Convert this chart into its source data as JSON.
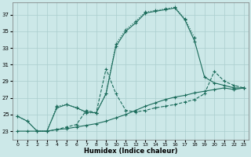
{
  "xlabel": "Humidex (Indice chaleur)",
  "background_color": "#cce8e8",
  "grid_color": "#aacece",
  "line_color": "#1a6b5a",
  "xlim": [
    -0.5,
    23.5
  ],
  "ylim": [
    22.0,
    38.5
  ],
  "yticks": [
    23,
    25,
    27,
    29,
    31,
    33,
    35,
    37
  ],
  "xticks": [
    0,
    1,
    2,
    3,
    4,
    5,
    6,
    7,
    8,
    9,
    10,
    11,
    12,
    13,
    14,
    15,
    16,
    17,
    18,
    19,
    20,
    21,
    22,
    23
  ],
  "line1_x": [
    0,
    1,
    2,
    3,
    4,
    5,
    6,
    7,
    8,
    9,
    10,
    11,
    12,
    13,
    14,
    15,
    16,
    17,
    18
  ],
  "line1_y": [
    24.8,
    24.2,
    23.0,
    23.0,
    26.0,
    26.2,
    25.8,
    25.2,
    25.2,
    27.5,
    33.5,
    35.2,
    36.2,
    37.3,
    37.5,
    37.7,
    37.9,
    36.5,
    34.2
  ],
  "line2_x": [
    0,
    1,
    2,
    3,
    4,
    5,
    6,
    7,
    8,
    9,
    10,
    11,
    12,
    13,
    14,
    15,
    16,
    17,
    18,
    19,
    20,
    21,
    22,
    23
  ],
  "line2_y": [
    23.0,
    23.0,
    23.0,
    23.0,
    23.2,
    23.3,
    23.5,
    23.7,
    23.9,
    24.2,
    24.6,
    25.0,
    25.5,
    26.0,
    26.4,
    26.8,
    27.1,
    27.3,
    27.6,
    27.8,
    28.0,
    28.2,
    28.0,
    28.2
  ],
  "line3_x": [
    3,
    4,
    5,
    6,
    7,
    8,
    9,
    10,
    11,
    12,
    13,
    14,
    15,
    16,
    17,
    18,
    19,
    20,
    21,
    22,
    23
  ],
  "line3_y": [
    23.0,
    23.2,
    23.5,
    23.8,
    25.5,
    25.2,
    30.5,
    27.5,
    25.5,
    25.3,
    25.5,
    25.8,
    26.0,
    26.2,
    26.5,
    26.8,
    27.5,
    30.2,
    29.0,
    28.5,
    28.2
  ],
  "line4_x": [
    0,
    1,
    2,
    3,
    4,
    5,
    6,
    7,
    8,
    9,
    10,
    11,
    12,
    13,
    14,
    15,
    16,
    17,
    18,
    19,
    20,
    21,
    22,
    23
  ],
  "line4_y": [
    24.8,
    24.2,
    23.0,
    23.0,
    25.8,
    26.2,
    25.8,
    25.3,
    25.2,
    27.5,
    33.2,
    35.0,
    36.0,
    37.2,
    37.4,
    37.6,
    37.8,
    36.4,
    33.8,
    29.5,
    28.8,
    28.5,
    28.2,
    28.2
  ]
}
